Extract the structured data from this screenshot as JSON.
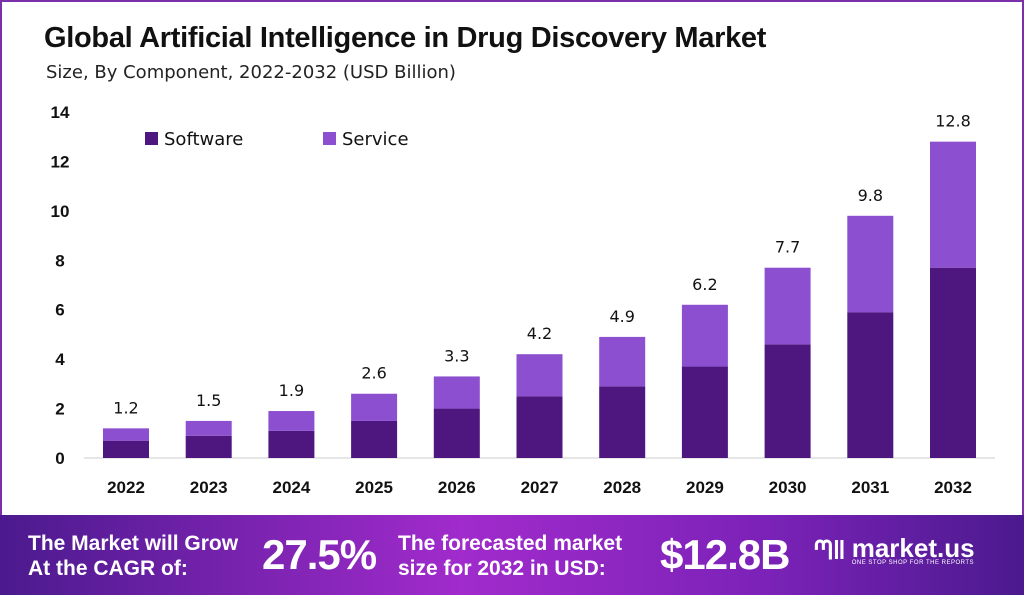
{
  "chart_data": {
    "type": "bar",
    "stacked": true,
    "title": "Global Artificial Intelligence in Drug Discovery Market",
    "subtitle": "Size, By Component, 2022-2032 (USD Billion)",
    "categories": [
      "2022",
      "2023",
      "2024",
      "2025",
      "2026",
      "2027",
      "2028",
      "2029",
      "2030",
      "2031",
      "2032"
    ],
    "series": [
      {
        "name": "Software",
        "color": "#4e1780",
        "values": [
          0.7,
          0.9,
          1.1,
          1.5,
          2.0,
          2.5,
          2.9,
          3.7,
          4.6,
          5.9,
          7.7
        ]
      },
      {
        "name": "Service",
        "color": "#8b4fd0",
        "values": [
          0.5,
          0.6,
          0.8,
          1.1,
          1.3,
          1.7,
          2.0,
          2.5,
          3.1,
          3.9,
          5.1
        ]
      }
    ],
    "totals": [
      "1.2",
      "1.5",
      "1.9",
      "2.6",
      "3.3",
      "4.2",
      "4.9",
      "6.2",
      "7.7",
      "9.8",
      "12.8"
    ],
    "yticks": [
      "0",
      "2",
      "4",
      "6",
      "8",
      "10",
      "12",
      "14"
    ],
    "ylim": [
      0,
      14
    ],
    "legend": "top-left",
    "grid": false
  },
  "banner": {
    "cagr_label_1": "The Market will Grow",
    "cagr_label_2": "At the CAGR of:",
    "cagr_value": "27.5%",
    "forecast_label_1": "The forecasted market",
    "forecast_label_2": "size for 2032 in USD:",
    "forecast_value": "$12.8B",
    "logo_text": "market.us",
    "logo_tagline": "ONE STOP SHOP FOR THE REPORTS"
  }
}
